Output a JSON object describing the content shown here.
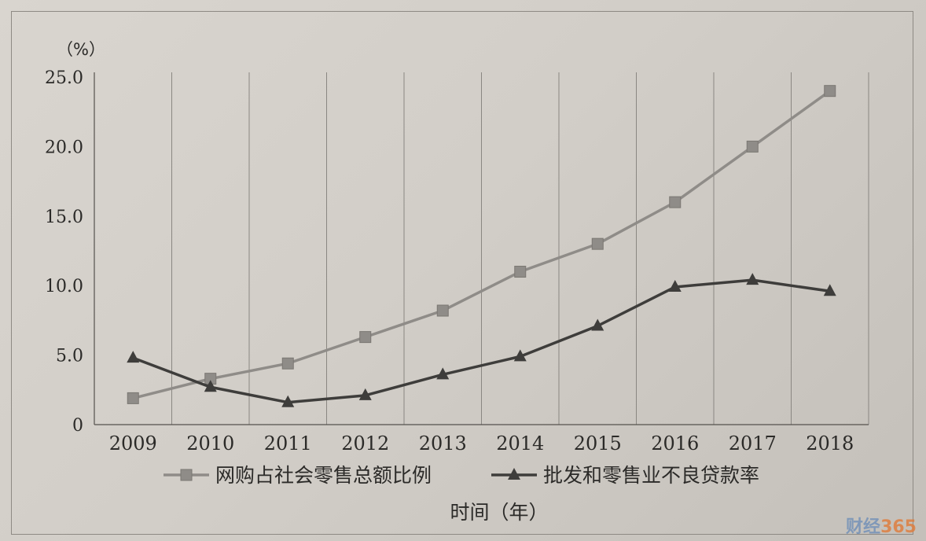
{
  "chart_data": {
    "type": "line",
    "categories": [
      "2009",
      "2010",
      "2011",
      "2012",
      "2013",
      "2014",
      "2015",
      "2016",
      "2017",
      "2018"
    ],
    "series": [
      {
        "name": "网购占社会零售总额比例",
        "marker": "square",
        "color": "#8f8c88",
        "values": [
          1.9,
          3.3,
          4.4,
          6.3,
          8.2,
          11.0,
          13.0,
          16.0,
          20.0,
          24.0
        ]
      },
      {
        "name": "批发和零售业不良贷款率",
        "marker": "triangle",
        "color": "#3e3d3b",
        "values": [
          4.8,
          2.7,
          1.6,
          2.1,
          3.6,
          4.9,
          7.1,
          9.9,
          10.4,
          9.6
        ]
      }
    ],
    "ylim": [
      0,
      25
    ],
    "yticks": [
      "0",
      "5.0",
      "10.0",
      "15.0",
      "20.0",
      "25.0"
    ],
    "yunit": "（%）",
    "xlabel": "时间（年）",
    "grid": "vertical",
    "legend": "bottom"
  },
  "watermark": {
    "text_main": "财经",
    "text_accent": "365"
  }
}
